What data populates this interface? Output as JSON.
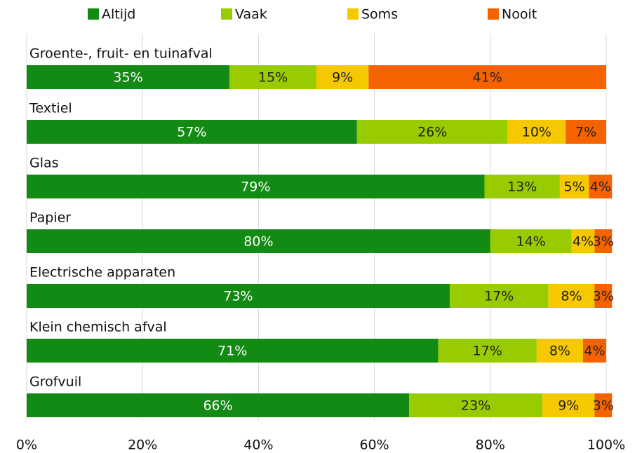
{
  "chart_data": {
    "type": "stacked-barh",
    "categories": [
      "Groente-, fruit- en tuinafval",
      "Textiel",
      "Glas",
      "Papier",
      "Electrische apparaten",
      "Klein chemisch afval",
      "Grofvuil"
    ],
    "series": [
      {
        "name": "Altijd",
        "color": "#138a13",
        "values": [
          35,
          57,
          79,
          80,
          73,
          71,
          66
        ],
        "value_labels": [
          "35%",
          "57%",
          "79%",
          "80%",
          "73%",
          "71%",
          "66%"
        ]
      },
      {
        "name": "Vaak",
        "color": "#99cc00",
        "values": [
          15,
          26,
          13,
          14,
          17,
          17,
          23
        ],
        "value_labels": [
          "15%",
          "26%",
          "13%",
          "14%",
          "17%",
          "17%",
          "23%"
        ]
      },
      {
        "name": "Soms",
        "color": "#f5c800",
        "values": [
          9,
          10,
          5,
          4,
          8,
          8,
          9
        ],
        "value_labels": [
          "9%",
          "10%",
          "5%",
          "4%",
          "8%",
          "8%",
          "9%"
        ]
      },
      {
        "name": "Nooit",
        "color": "#f56200",
        "values": [
          41,
          7,
          4,
          3,
          3,
          4,
          3
        ],
        "value_labels": [
          "41%",
          "7%",
          "4%",
          "3%",
          "3%",
          "4%",
          "3%"
        ]
      }
    ],
    "xlim": [
      0,
      100
    ],
    "xticks": [
      {
        "value": 0,
        "label": "0%"
      },
      {
        "value": 20,
        "label": "20%"
      },
      {
        "value": 40,
        "label": "40%"
      },
      {
        "value": 60,
        "label": "60%"
      },
      {
        "value": 80,
        "label": "80%"
      },
      {
        "value": 100,
        "label": "100%"
      }
    ],
    "grid": true,
    "legend": "top"
  }
}
